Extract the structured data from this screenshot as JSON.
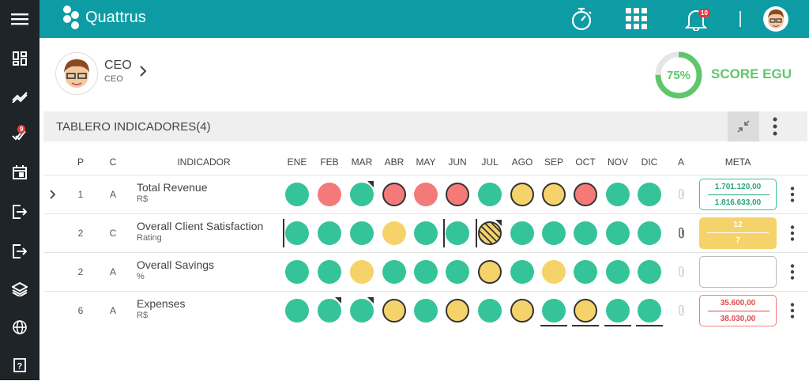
{
  "app": {
    "name": "Quattrus",
    "notifications": "10",
    "sidebar_badge": "9"
  },
  "user": {
    "name": "CEO",
    "role": "CEO"
  },
  "score": {
    "percent": "75%",
    "label": "SCORE EGU",
    "value": 0.75
  },
  "panel": {
    "title": "TABLERO INDICADORES(4)"
  },
  "columns": {
    "p": "P",
    "c": "C",
    "indicador": "INDICADOR",
    "a": "A",
    "meta": "META",
    "months": [
      "ENE",
      "FEB",
      "MAR",
      "ABR",
      "MAY",
      "JUN",
      "JUL",
      "AGO",
      "SEP",
      "OCT",
      "NOV",
      "DIC"
    ]
  },
  "colors": {
    "teal": "#0d9ca4",
    "green": "#35c49a",
    "red": "#f47a7a",
    "yellow": "#f5d36a",
    "score": "#5ec76b"
  },
  "rows": [
    {
      "p": "1",
      "c": "A",
      "name": "Total Revenue",
      "unit": "R$",
      "meta": [
        "1.701.120,00",
        "1.816.633,00"
      ],
      "meta_style": "green",
      "attachment": "faded",
      "expandable": true,
      "months": [
        {
          "color": "green"
        },
        {
          "color": "red"
        },
        {
          "color": "green",
          "corner": true
        },
        {
          "color": "red",
          "ring": true
        },
        {
          "color": "red"
        },
        {
          "color": "red",
          "ring": true
        },
        {
          "color": "green"
        },
        {
          "color": "yellow",
          "ring": true
        },
        {
          "color": "yellow",
          "ring": true
        },
        {
          "color": "red",
          "ring": true
        },
        {
          "color": "green"
        },
        {
          "color": "green"
        }
      ]
    },
    {
      "p": "2",
      "c": "C",
      "name": "Overall Client Satisfaction",
      "unit": "Rating",
      "meta": [
        "12",
        "7"
      ],
      "meta_style": "yellow",
      "attachment": "active",
      "expandable": false,
      "months": [
        {
          "color": "green",
          "vbar": true
        },
        {
          "color": "green"
        },
        {
          "color": "green"
        },
        {
          "color": "yellow"
        },
        {
          "color": "green"
        },
        {
          "color": "green",
          "vbar": true
        },
        {
          "color": "hatch",
          "vbar": true,
          "corner": true
        },
        {
          "color": "green"
        },
        {
          "color": "green"
        },
        {
          "color": "green"
        },
        {
          "color": "green"
        },
        {
          "color": "green"
        }
      ]
    },
    {
      "p": "2",
      "c": "A",
      "name": "Overall Savings",
      "unit": "%",
      "meta": [
        "",
        ""
      ],
      "meta_style": "empty",
      "attachment": "faded",
      "expandable": false,
      "months": [
        {
          "color": "green"
        },
        {
          "color": "green"
        },
        {
          "color": "yellow"
        },
        {
          "color": "green"
        },
        {
          "color": "green"
        },
        {
          "color": "green"
        },
        {
          "color": "yellow",
          "ring": true
        },
        {
          "color": "green"
        },
        {
          "color": "yellow"
        },
        {
          "color": "green"
        },
        {
          "color": "green"
        },
        {
          "color": "green"
        }
      ]
    },
    {
      "p": "6",
      "c": "A",
      "name": "Expenses",
      "unit": "R$",
      "meta": [
        "35.600,00",
        "38.030,00"
      ],
      "meta_style": "red",
      "attachment": "faded",
      "expandable": false,
      "months": [
        {
          "color": "green"
        },
        {
          "color": "green",
          "corner": true
        },
        {
          "color": "green",
          "corner": true
        },
        {
          "color": "yellow",
          "ring": true
        },
        {
          "color": "green"
        },
        {
          "color": "yellow",
          "ring": true
        },
        {
          "color": "green"
        },
        {
          "color": "yellow",
          "ring": true
        },
        {
          "color": "green",
          "ubar": true
        },
        {
          "color": "yellow",
          "ring": true,
          "ubar": true
        },
        {
          "color": "green",
          "ubar": true
        },
        {
          "color": "green",
          "ubar": true
        }
      ]
    }
  ],
  "icons": {
    "sidebar": [
      "dashboard-icon",
      "trend-icon",
      "check-badge-icon",
      "calendar-icon",
      "login-icon",
      "logout-icon",
      "layers-icon",
      "globe-icon",
      "help-icon"
    ],
    "top": [
      "stopwatch-icon",
      "apps-grid-icon",
      "bell-icon",
      "user-avatar"
    ]
  }
}
